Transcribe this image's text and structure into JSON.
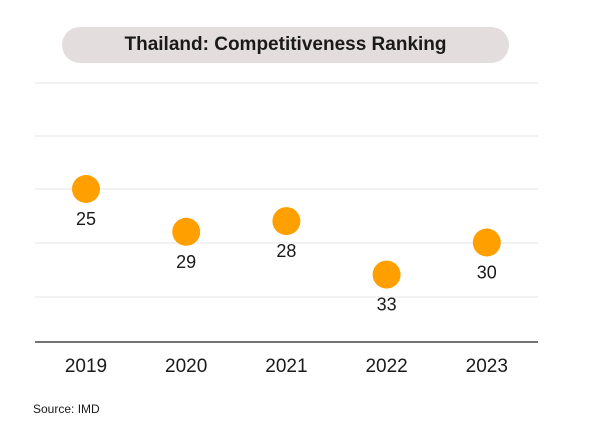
{
  "chart_data": {
    "type": "scatter",
    "title": "Thailand: Competitiveness Ranking",
    "categories": [
      "2019",
      "2020",
      "2021",
      "2022",
      "2023"
    ],
    "values": [
      25,
      29,
      28,
      33,
      30
    ],
    "data_labels": [
      "25",
      "29",
      "28",
      "33",
      "30"
    ],
    "xlabel": "",
    "ylabel": "",
    "y_inverted": true,
    "grid": true,
    "marker_color": "#FF9F00",
    "legend": "none"
  },
  "source": "Source: IMD"
}
